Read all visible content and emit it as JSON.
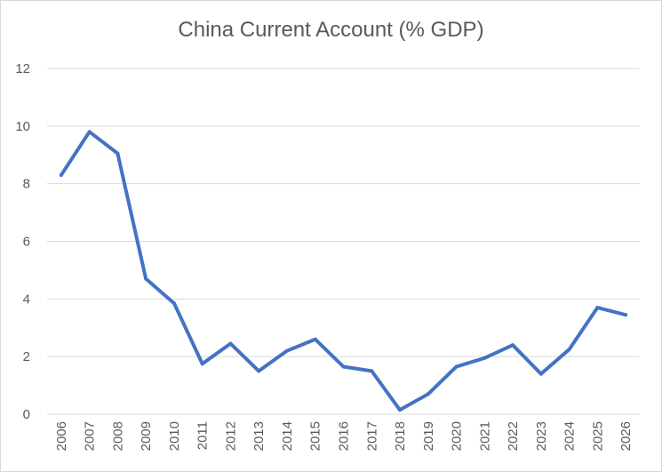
{
  "chart_data": {
    "type": "line",
    "title": "China Current Account (% GDP)",
    "xlabel": "",
    "ylabel": "",
    "x": [
      "2006",
      "2007",
      "2008",
      "2009",
      "2010",
      "2011",
      "2012",
      "2013",
      "2014",
      "2015",
      "2016",
      "2017",
      "2018",
      "2019",
      "2020",
      "2021",
      "2022",
      "2023",
      "2024",
      "2025",
      "2026"
    ],
    "series": [
      {
        "values": [
          8.3,
          9.8,
          9.05,
          4.7,
          3.85,
          1.75,
          2.45,
          1.5,
          2.2,
          2.6,
          1.65,
          1.5,
          0.15,
          0.7,
          1.65,
          1.95,
          2.4,
          1.4,
          2.25,
          3.7,
          3.45
        ],
        "color": "#4472c4"
      }
    ],
    "ylim": [
      0,
      12
    ],
    "yticks": [
      0,
      2,
      4,
      6,
      8,
      10,
      12
    ],
    "grid": true,
    "legend": "none"
  }
}
